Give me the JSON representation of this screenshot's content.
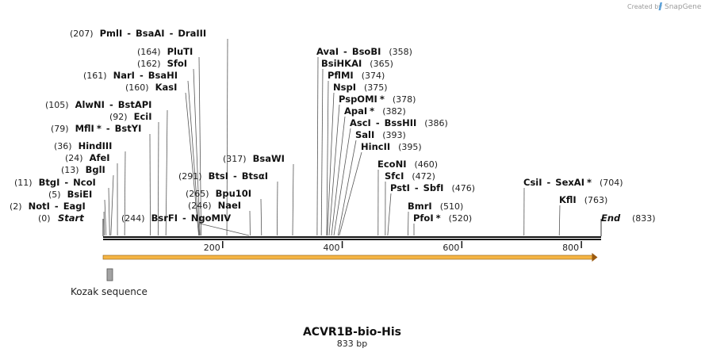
{
  "credit": {
    "prefix": "Created by",
    "brand": "SnapGene"
  },
  "sequence": {
    "title": "ACVR1B-bio-His",
    "length_label": "833 bp",
    "length": 833,
    "start_label": "Start",
    "end_label": "End",
    "start_pos": "(0)",
    "end_pos": "(833)"
  },
  "ruler": {
    "ticks": [
      {
        "value": 200,
        "label": "200"
      },
      {
        "value": 400,
        "label": "400"
      },
      {
        "value": 600,
        "label": "600"
      },
      {
        "value": 800,
        "label": "800"
      }
    ]
  },
  "features": [
    {
      "name": "Kozak sequence",
      "start": 7,
      "end": 16,
      "color": "#a3a3a3"
    }
  ],
  "orf": {
    "start": 0,
    "end": 827,
    "color": "#f5b544"
  },
  "sites": [
    {
      "id": "pmli",
      "enzymes": [
        {
          "name": "PmlI"
        },
        {
          "name": "BsaAI"
        },
        {
          "name": "DraIII"
        }
      ],
      "position": 207,
      "pos_label": "(207)",
      "side": "left"
    },
    {
      "id": "pluti",
      "enzymes": [
        {
          "name": "PluTI"
        }
      ],
      "position": 164,
      "pos_label": "(164)",
      "side": "left"
    },
    {
      "id": "sfoi",
      "enzymes": [
        {
          "name": "SfoI"
        }
      ],
      "position": 162,
      "pos_label": "(162)",
      "side": "left"
    },
    {
      "id": "nari",
      "enzymes": [
        {
          "name": "NarI"
        },
        {
          "name": "BsaHI"
        }
      ],
      "position": 161,
      "pos_label": "(161)",
      "side": "left"
    },
    {
      "id": "kasi",
      "enzymes": [
        {
          "name": "KasI"
        }
      ],
      "position": 160,
      "pos_label": "(160)",
      "side": "left"
    },
    {
      "id": "alwni",
      "enzymes": [
        {
          "name": "AlwNI"
        },
        {
          "name": "BstAPI"
        }
      ],
      "position": 105,
      "pos_label": "(105)",
      "side": "left"
    },
    {
      "id": "ecii",
      "enzymes": [
        {
          "name": "EciI"
        }
      ],
      "position": 92,
      "pos_label": "(92)",
      "side": "left"
    },
    {
      "id": "mfli",
      "enzymes": [
        {
          "name": "MflI",
          "star": "*"
        },
        {
          "name": "BstYI"
        }
      ],
      "position": 79,
      "pos_label": "(79)",
      "side": "left"
    },
    {
      "id": "hindiii",
      "enzymes": [
        {
          "name": "HindIII"
        }
      ],
      "position": 36,
      "pos_label": "(36)",
      "side": "left"
    },
    {
      "id": "afei",
      "enzymes": [
        {
          "name": "AfeI"
        }
      ],
      "position": 24,
      "pos_label": "(24)",
      "side": "left"
    },
    {
      "id": "bgli",
      "enzymes": [
        {
          "name": "BglI"
        }
      ],
      "position": 13,
      "pos_label": "(13)",
      "side": "left"
    },
    {
      "id": "btgi",
      "enzymes": [
        {
          "name": "BtgI"
        },
        {
          "name": "NcoI"
        }
      ],
      "position": 11,
      "pos_label": "(11)",
      "side": "left"
    },
    {
      "id": "bsiei",
      "enzymes": [
        {
          "name": "BsiEI"
        }
      ],
      "position": 5,
      "pos_label": "(5)",
      "side": "left"
    },
    {
      "id": "noti",
      "enzymes": [
        {
          "name": "NotI"
        },
        {
          "name": "EagI"
        }
      ],
      "position": 2,
      "pos_label": "(2)",
      "side": "left"
    },
    {
      "id": "bsrfi",
      "enzymes": [
        {
          "name": "BsrFI"
        },
        {
          "name": "NgoMIV"
        }
      ],
      "position": 244,
      "pos_label": "(244)",
      "side": "left"
    },
    {
      "id": "bstsi",
      "enzymes": [
        {
          "name": "BtsI"
        },
        {
          "name": "BtsαI"
        }
      ],
      "position": 291,
      "pos_label": "(291)",
      "side": "left"
    },
    {
      "id": "bpu10i",
      "enzymes": [
        {
          "name": "Bpu10I"
        }
      ],
      "position": 265,
      "pos_label": "(265)",
      "side": "left"
    },
    {
      "id": "naei",
      "enzymes": [
        {
          "name": "NaeI"
        }
      ],
      "position": 246,
      "pos_label": "(246)",
      "side": "left"
    },
    {
      "id": "bsawi",
      "enzymes": [
        {
          "name": "BsaWI"
        }
      ],
      "position": 317,
      "pos_label": "(317)",
      "side": "left"
    },
    {
      "id": "avai",
      "enzymes": [
        {
          "name": "AvaI"
        },
        {
          "name": "BsoBI"
        }
      ],
      "position": 358,
      "pos_label": "(358)",
      "side": "right"
    },
    {
      "id": "bsihkai",
      "enzymes": [
        {
          "name": "BsiHKAI"
        }
      ],
      "position": 365,
      "pos_label": "(365)",
      "side": "right"
    },
    {
      "id": "pflmi",
      "enzymes": [
        {
          "name": "PflMI"
        }
      ],
      "position": 374,
      "pos_label": "(374)",
      "side": "right"
    },
    {
      "id": "nspi",
      "enzymes": [
        {
          "name": "NspI"
        }
      ],
      "position": 375,
      "pos_label": "(375)",
      "side": "right"
    },
    {
      "id": "psppomi",
      "enzymes": [
        {
          "name": "PspOMI",
          "star": "*"
        }
      ],
      "position": 378,
      "pos_label": "(378)",
      "side": "right"
    },
    {
      "id": "apai",
      "enzymes": [
        {
          "name": "ApaI",
          "star": "*"
        }
      ],
      "position": 382,
      "pos_label": "(382)",
      "side": "right"
    },
    {
      "id": "asci",
      "enzymes": [
        {
          "name": "AscI"
        },
        {
          "name": "BssHII"
        }
      ],
      "position": 386,
      "pos_label": "(386)",
      "side": "right"
    },
    {
      "id": "sali",
      "enzymes": [
        {
          "name": "SalI"
        }
      ],
      "position": 393,
      "pos_label": "(393)",
      "side": "right"
    },
    {
      "id": "hincii",
      "enzymes": [
        {
          "name": "HincII"
        }
      ],
      "position": 395,
      "pos_label": "(395)",
      "side": "right"
    },
    {
      "id": "econi",
      "enzymes": [
        {
          "name": "EcoNI"
        }
      ],
      "position": 460,
      "pos_label": "(460)",
      "side": "right"
    },
    {
      "id": "sfci",
      "enzymes": [
        {
          "name": "SfcI"
        }
      ],
      "position": 472,
      "pos_label": "(472)",
      "side": "right"
    },
    {
      "id": "psti",
      "enzymes": [
        {
          "name": "PstI"
        },
        {
          "name": "SbfI"
        }
      ],
      "position": 476,
      "pos_label": "(476)",
      "side": "right"
    },
    {
      "id": "bmri",
      "enzymes": [
        {
          "name": "BmrI"
        }
      ],
      "position": 510,
      "pos_label": "(510)",
      "side": "right"
    },
    {
      "id": "pfoi",
      "enzymes": [
        {
          "name": "PfoI",
          "star": "*"
        }
      ],
      "position": 520,
      "pos_label": "(520)",
      "side": "right"
    },
    {
      "id": "csii",
      "enzymes": [
        {
          "name": "CsiI"
        },
        {
          "name": "SexAI",
          "star": "*"
        }
      ],
      "position": 704,
      "pos_label": "(704)",
      "side": "right"
    },
    {
      "id": "kfli",
      "enzymes": [
        {
          "name": "KflI"
        }
      ],
      "position": 763,
      "pos_label": "(763)",
      "side": "right"
    }
  ]
}
